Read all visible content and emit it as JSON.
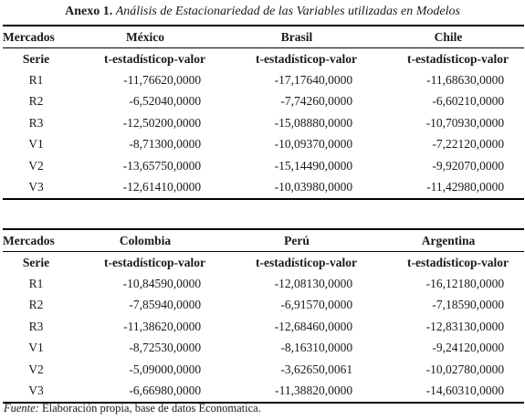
{
  "caption": {
    "lead": "Anexo 1.",
    "rest": "Análisis de Estacionariedad de las Variables utilizadas en Modelos"
  },
  "header_labels": {
    "markets": "Mercados",
    "serie": "Serie",
    "t_stat": "t-estadístico",
    "p_value": "p-valor"
  },
  "tables": [
    {
      "markets": [
        "México",
        "Brasil",
        "Chile"
      ],
      "rows": [
        {
          "serie": "R1",
          "values": [
            [
              "-11,7662",
              "0,0000"
            ],
            [
              "-17,1764",
              "0,0000"
            ],
            [
              "-11,6863",
              "0,0000"
            ]
          ]
        },
        {
          "serie": "R2",
          "values": [
            [
              "-6,5204",
              "0,0000"
            ],
            [
              "-7,7426",
              "0,0000"
            ],
            [
              "-6,6021",
              "0,0000"
            ]
          ]
        },
        {
          "serie": "R3",
          "values": [
            [
              "-12,5020",
              "0,0000"
            ],
            [
              "-15,0888",
              "0,0000"
            ],
            [
              "-10,7093",
              "0,0000"
            ]
          ]
        },
        {
          "serie": "V1",
          "values": [
            [
              "-8,7130",
              "0,0000"
            ],
            [
              "-10,0937",
              "0,0000"
            ],
            [
              "-7,2212",
              "0,0000"
            ]
          ]
        },
        {
          "serie": "V2",
          "values": [
            [
              "-13,6575",
              "0,0000"
            ],
            [
              "-15,1449",
              "0,0000"
            ],
            [
              "-9,9207",
              "0,0000"
            ]
          ]
        },
        {
          "serie": "V3",
          "values": [
            [
              "-12,6141",
              "0,0000"
            ],
            [
              "-10,0398",
              "0,0000"
            ],
            [
              "-11,4298",
              "0,0000"
            ]
          ]
        }
      ]
    },
    {
      "markets": [
        "Colombia",
        "Perú",
        "Argentina"
      ],
      "rows": [
        {
          "serie": "R1",
          "values": [
            [
              "-10,8459",
              "0,0000"
            ],
            [
              "-12,0813",
              "0,0000"
            ],
            [
              "-16,1218",
              "0,0000"
            ]
          ]
        },
        {
          "serie": "R2",
          "values": [
            [
              "-7,8594",
              "0,0000"
            ],
            [
              "-6,9157",
              "0,0000"
            ],
            [
              "-7,1859",
              "0,0000"
            ]
          ]
        },
        {
          "serie": "R3",
          "values": [
            [
              "-11,3862",
              "0,0000"
            ],
            [
              "-12,6846",
              "0,0000"
            ],
            [
              "-12,8313",
              "0,0000"
            ]
          ]
        },
        {
          "serie": "V1",
          "values": [
            [
              "-8,7253",
              "0,0000"
            ],
            [
              "-8,1631",
              "0,0000"
            ],
            [
              "-9,2412",
              "0,0000"
            ]
          ]
        },
        {
          "serie": "V2",
          "values": [
            [
              "-5,0900",
              "0,0000"
            ],
            [
              "-3,6265",
              "0,0061"
            ],
            [
              "-10,0278",
              "0,0000"
            ]
          ]
        },
        {
          "serie": "V3",
          "values": [
            [
              "-6,6698",
              "0,0000"
            ],
            [
              "-11,3882",
              "0,0000"
            ],
            [
              "-14,6031",
              "0,0000"
            ]
          ]
        }
      ]
    }
  ],
  "source": {
    "label": "Fuente:",
    "text": " Elaboración propia, base de datos Economatica."
  }
}
